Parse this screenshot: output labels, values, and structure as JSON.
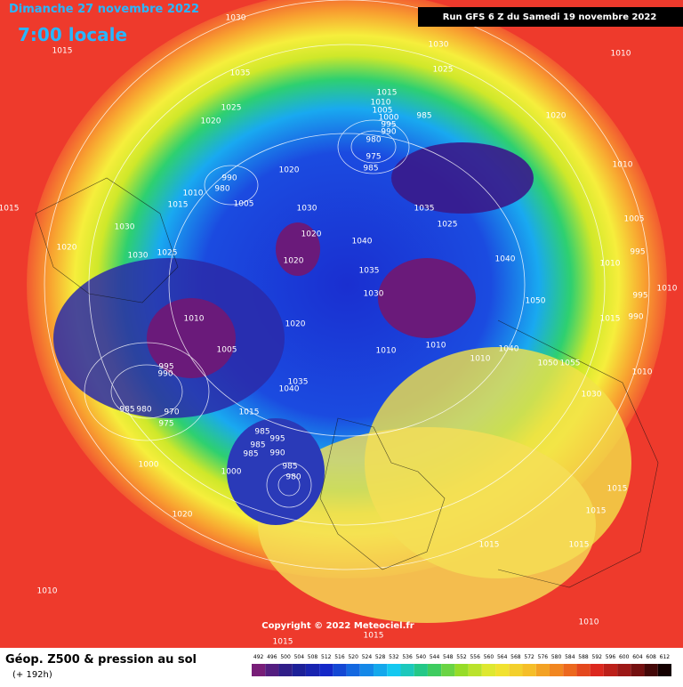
{
  "header": {
    "date": "Dimanche 27 novembre 2022",
    "local_time": "7:00 locale",
    "run": "Run GFS 6 Z du Samedi 19 novembre 2022"
  },
  "copyright": "Copyright © 2022 Meteociel.fr",
  "footer": {
    "title": "Géop. Z500 & pression au sol",
    "lead_time": "(+ 192h)"
  },
  "isobar_labels": [
    "1030",
    "1015",
    "1035",
    "1030",
    "1025",
    "1010",
    "1025",
    "1020",
    "1015",
    "1010",
    "1005",
    "1000",
    "995",
    "990",
    "985",
    "980",
    "975",
    "985",
    "1020",
    "990",
    "980",
    "1010",
    "1015",
    "1005",
    "1020",
    "1010",
    "1015",
    "1030",
    "1035",
    "1025",
    "1030",
    "1020",
    "1040",
    "1005",
    "1020",
    "1030",
    "1025",
    "1020",
    "1040",
    "1010",
    "995",
    "1035",
    "1030",
    "1050",
    "1010",
    "995",
    "990",
    "1010",
    "1020",
    "1015",
    "1010",
    "1005",
    "1010",
    "1040",
    "1010",
    "1050",
    "1055",
    "995",
    "990",
    "1035",
    "1040",
    "1010",
    "1030",
    "985",
    "980",
    "970",
    "975",
    "1015",
    "985",
    "995",
    "985",
    "990",
    "985",
    "1000",
    "1000",
    "985",
    "980",
    "1015",
    "1020",
    "1015",
    "1015",
    "1015",
    "1010",
    "1010",
    "1015",
    "1015"
  ],
  "scale_labels": [
    "492",
    "496",
    "500",
    "504",
    "508",
    "512",
    "516",
    "520",
    "524",
    "528",
    "532",
    "536",
    "540",
    "544",
    "548",
    "552",
    "556",
    "560",
    "564",
    "568",
    "572",
    "576",
    "580",
    "584",
    "588",
    "592",
    "596",
    "600",
    "604",
    "608",
    "612"
  ]
}
